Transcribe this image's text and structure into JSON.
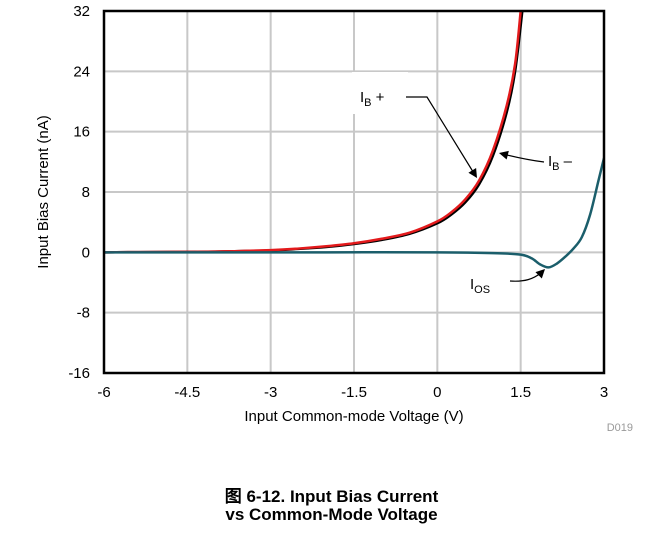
{
  "figure": {
    "caption_line1": "图 6-12. Input Bias Current",
    "caption_line2": "vs Common-Mode Voltage",
    "code": "D019"
  },
  "chart_data": {
    "type": "line",
    "xlabel": "Input Common-mode Voltage (V)",
    "ylabel": "Input Bias Current (nA)",
    "xlim": [
      -6,
      3
    ],
    "ylim": [
      -16,
      32
    ],
    "xticks": [
      "-6",
      "-4.5",
      "-3",
      "-1.5",
      "0",
      "1.5",
      "3"
    ],
    "xtick_values": [
      -6,
      -4.5,
      -3,
      -1.5,
      0,
      1.5,
      3
    ],
    "yticks": [
      "-16",
      "-8",
      "0",
      "8",
      "16",
      "24",
      "32"
    ],
    "ytick_values": [
      -16,
      -8,
      0,
      8,
      16,
      24,
      32
    ],
    "grid": true,
    "series": [
      {
        "name": "IB +",
        "label_main": "I",
        "label_sub": "B",
        "label_suffix": " +",
        "color": "#e31a1c",
        "x": [
          -6,
          -5,
          -4,
          -3,
          -2.5,
          -2,
          -1.5,
          -1,
          -0.5,
          0,
          0.25,
          0.5,
          0.75,
          1.0,
          1.25,
          1.4,
          1.5
        ],
        "y": [
          0.0,
          0.05,
          0.1,
          0.3,
          0.5,
          0.8,
          1.2,
          1.8,
          2.6,
          4.1,
          5.3,
          7.0,
          9.5,
          13.5,
          19.5,
          25.0,
          32.0
        ]
      },
      {
        "name": "IB –",
        "label_main": "I",
        "label_sub": "B",
        "label_suffix": " –",
        "color": "#000000",
        "x": [
          -6,
          -5,
          -4,
          -3,
          -2.5,
          -2,
          -1.5,
          -1,
          -0.5,
          0,
          0.25,
          0.5,
          0.75,
          1.0,
          1.25,
          1.4,
          1.53
        ],
        "y": [
          0.0,
          0.05,
          0.1,
          0.25,
          0.45,
          0.7,
          1.1,
          1.65,
          2.45,
          3.85,
          5.0,
          6.6,
          9.0,
          12.8,
          18.6,
          24.0,
          32.0
        ]
      },
      {
        "name": "IOS",
        "label_main": "I",
        "label_sub": "OS",
        "label_suffix": "",
        "color": "#1b5e6b",
        "x": [
          -6,
          -4,
          -2,
          0,
          1.0,
          1.5,
          1.7,
          1.85,
          2.0,
          2.15,
          2.3,
          2.45,
          2.6,
          2.75,
          2.9,
          3.0
        ],
        "y": [
          0.0,
          0.0,
          0.0,
          0.0,
          -0.1,
          -0.3,
          -0.8,
          -1.6,
          -2.0,
          -1.5,
          -0.6,
          0.5,
          2.0,
          5.0,
          9.5,
          12.5
        ]
      }
    ]
  }
}
